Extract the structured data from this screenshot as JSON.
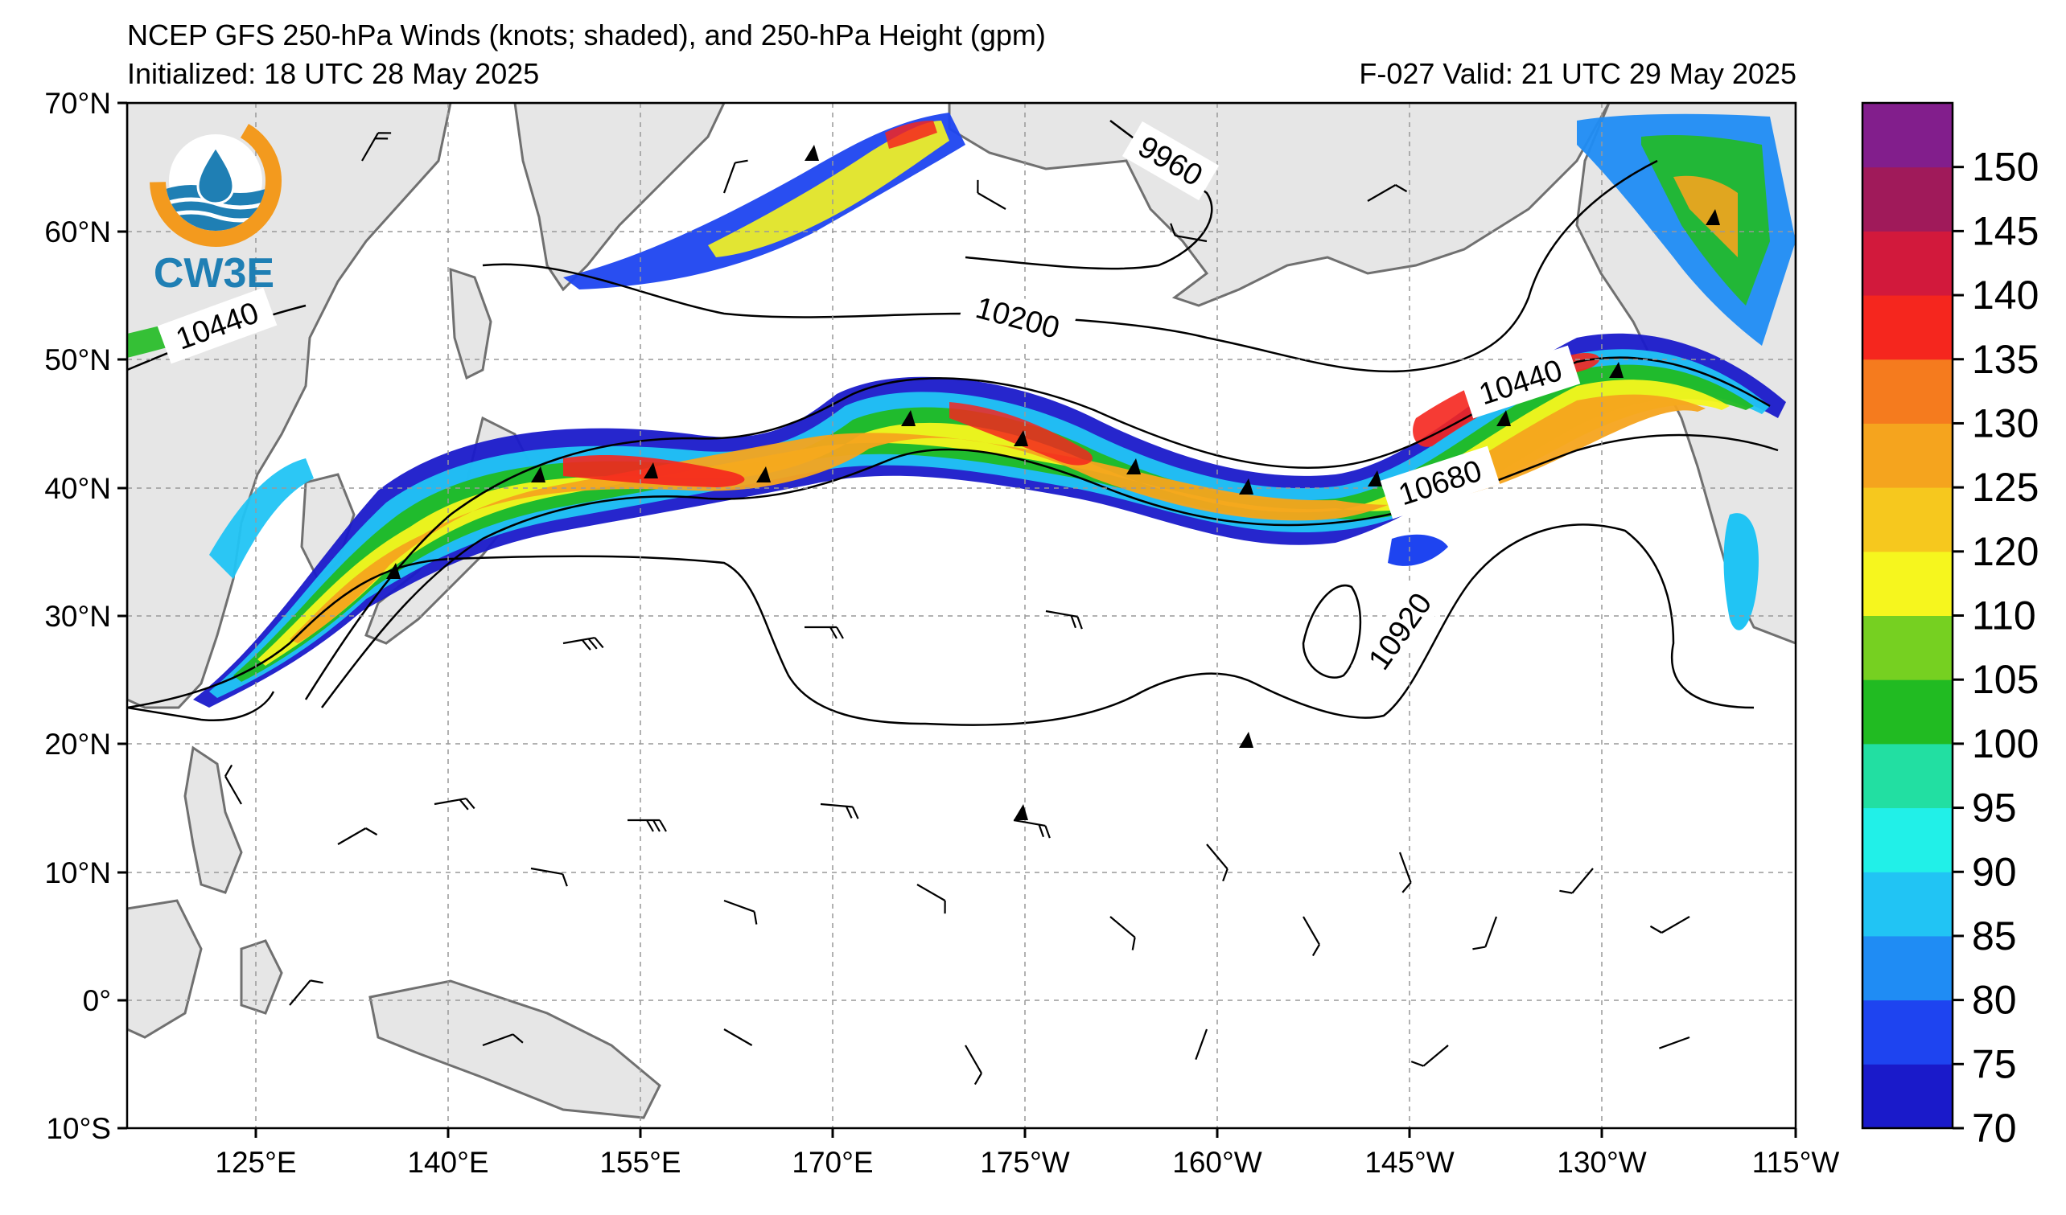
{
  "header": {
    "title": "NCEP GFS 250-hPa Winds (knots; shaded), and 250-hPa Height (gpm)",
    "initialized": "Initialized: 18 UTC 28 May 2025",
    "valid": "F-027  Valid: 21 UTC 29 May 2025"
  },
  "logo": {
    "text": "CW3E",
    "colors": {
      "ring": "#f39a1e",
      "drop": "#1f7fb4",
      "wave": "#1f7fb4"
    }
  },
  "map": {
    "lat_labels": [
      "70°N",
      "60°N",
      "50°N",
      "40°N",
      "30°N",
      "20°N",
      "10°N",
      "0°",
      "10°S"
    ],
    "lon_labels": [
      "125°E",
      "140°E",
      "155°E",
      "170°E",
      "175°W",
      "160°W",
      "145°W",
      "130°W",
      "115°W"
    ],
    "contour_labels": [
      "9960",
      "10200",
      "10440",
      "10440",
      "10680",
      "10920"
    ],
    "land_color": "#e6e6e6",
    "coast_color": "#707070"
  },
  "colorbar": {
    "ticks": [
      "70",
      "75",
      "80",
      "85",
      "90",
      "95",
      "100",
      "105",
      "110",
      "120",
      "125",
      "130",
      "135",
      "140",
      "145",
      "150"
    ],
    "colors": [
      "#1a1aca",
      "#1e44f0",
      "#1f8cf4",
      "#21c4f4",
      "#21f0e8",
      "#22dfa2",
      "#21bb22",
      "#76d021",
      "#f6f61e",
      "#f6c81e",
      "#f5a41e",
      "#f57b1e",
      "#f5261e",
      "#d2193c",
      "#a01a5a",
      "#821e8c"
    ]
  }
}
